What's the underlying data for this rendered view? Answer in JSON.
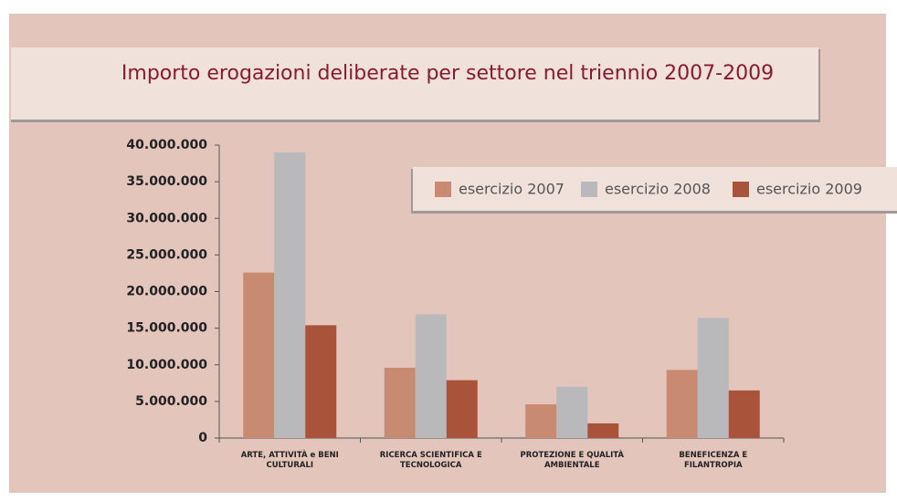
{
  "chart_data": {
    "type": "bar",
    "title": "Importo erogazioni deliberate per settore nel triennio 2007-2009",
    "categories": [
      "ARTE, ATTIVITÀ  e BENI CULTURALI",
      "RICERCA SCIENTIFICA E TECNOLOGICA",
      "PROTEZIONE E QUALITÀ AMBIENTALE",
      "BENEFICENZA E FILANTROPIA"
    ],
    "series": [
      {
        "name": "esercizio 2007",
        "color": "#c98a72",
        "values": [
          22600000,
          9600000,
          4600000,
          9300000
        ]
      },
      {
        "name": "esercizio 2008",
        "color": "#b9b9bc",
        "values": [
          39000000,
          16900000,
          7000000,
          16400000
        ]
      },
      {
        "name": "esercizio 2009",
        "color": "#a9533b",
        "values": [
          15400000,
          7900000,
          2000000,
          6500000
        ]
      }
    ],
    "ylim": [
      0,
      40000000
    ],
    "yticks": [
      0,
      {
        "value": 5000000,
        "label": "5.000.000"
      },
      {
        "value": 10000000,
        "label": "10.000.000"
      },
      {
        "value": 15000000,
        "label": "15.000.000"
      },
      {
        "value": 20000000,
        "label": "20.000.000"
      },
      {
        "value": 25000000,
        "label": "25.000.000"
      },
      {
        "value": 30000000,
        "label": "30.000.000"
      },
      {
        "value": 35000000,
        "label": "35.000.000"
      },
      {
        "value": 40000000,
        "label": "40.000.000"
      }
    ],
    "legend": "top-right"
  }
}
